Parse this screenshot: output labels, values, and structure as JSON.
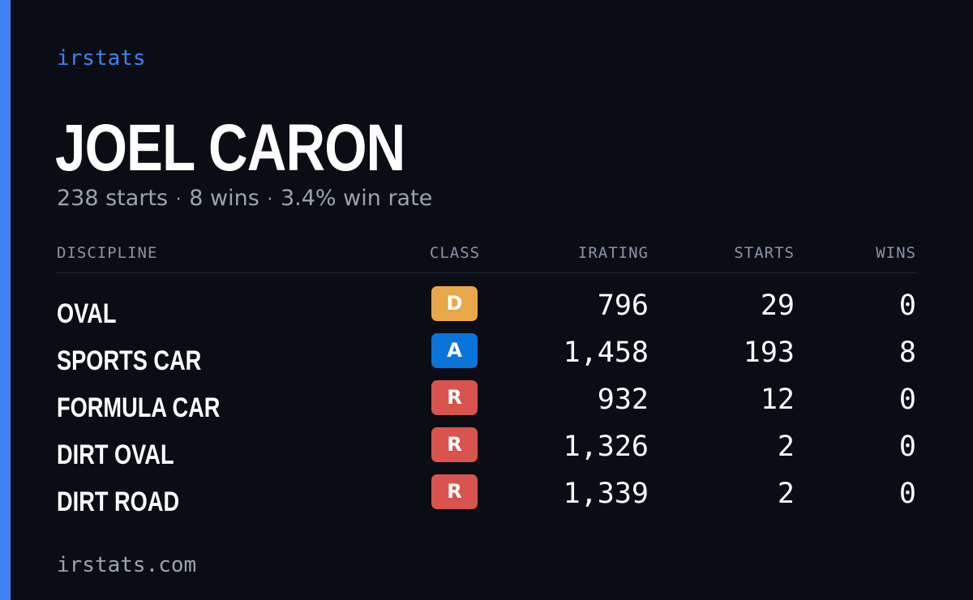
{
  "brand": "irstats",
  "driver": {
    "name": "JOEL CARON",
    "starts_text": "238 starts",
    "wins_text": "8 wins",
    "win_rate_text": "3.4% win rate",
    "separator": "·"
  },
  "table": {
    "headers": {
      "discipline": "DISCIPLINE",
      "class": "CLASS",
      "irating": "IRATING",
      "starts": "STARTS",
      "wins": "WINS"
    },
    "rows": [
      {
        "discipline": "OVAL",
        "class": "D",
        "class_color": "#e8a84a",
        "irating": "796",
        "starts": "29",
        "wins": "0"
      },
      {
        "discipline": "SPORTS CAR",
        "class": "A",
        "class_color": "#0a74da",
        "irating": "1,458",
        "starts": "193",
        "wins": "8"
      },
      {
        "discipline": "FORMULA CAR",
        "class": "R",
        "class_color": "#d9534f",
        "irating": "932",
        "starts": "12",
        "wins": "0"
      },
      {
        "discipline": "DIRT OVAL",
        "class": "R",
        "class_color": "#d9534f",
        "irating": "1,326",
        "starts": "2",
        "wins": "0"
      },
      {
        "discipline": "DIRT ROAD",
        "class": "R",
        "class_color": "#d9534f",
        "irating": "1,339",
        "starts": "2",
        "wins": "0"
      }
    ]
  },
  "footer": "irstats.com",
  "colors": {
    "accent": "#3b82f6",
    "background": "#0a0d14"
  }
}
